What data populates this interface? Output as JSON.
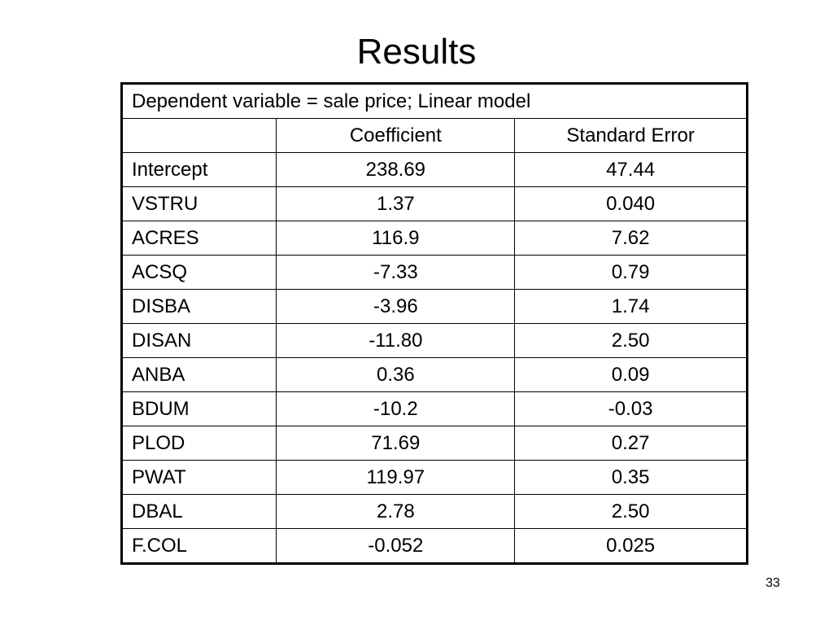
{
  "title": "Results",
  "table": {
    "caption": "Dependent variable = sale price; Linear model",
    "columns": [
      "Coefficient",
      "Standard Error"
    ],
    "rows": [
      [
        "Intercept",
        "238.69",
        "47.44"
      ],
      [
        "VSTRU",
        "1.37",
        "0.040"
      ],
      [
        "ACRES",
        "116.9",
        "7.62"
      ],
      [
        "ACSQ",
        "-7.33",
        "0.79"
      ],
      [
        "DISBA",
        "-3.96",
        "1.74"
      ],
      [
        "DISAN",
        "-11.80",
        "2.50"
      ],
      [
        "ANBA",
        "0.36",
        "0.09"
      ],
      [
        "BDUM",
        "-10.2",
        "-0.03"
      ],
      [
        "PLOD",
        "71.69",
        "0.27"
      ],
      [
        "PWAT",
        "119.97",
        "0.35"
      ],
      [
        "DBAL",
        "2.78",
        "2.50"
      ],
      [
        "F.COL",
        "-0.052",
        "0.025"
      ]
    ]
  },
  "page_number": "33"
}
